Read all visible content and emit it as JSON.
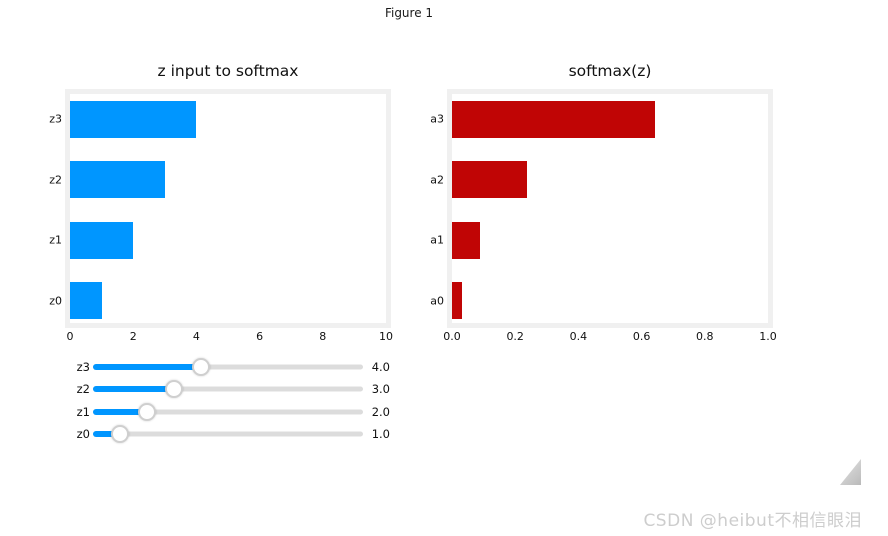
{
  "figure": {
    "title": "Figure 1"
  },
  "colors": {
    "bar_blue": "#0096ff",
    "bar_red": "#c00505",
    "plot_frame": "#f0f0f0",
    "slider_track": "#dcdcdc",
    "slider_fill": "#0096ff",
    "watermark": "#cdcdcd"
  },
  "chart_data": [
    {
      "type": "bar",
      "orientation": "horizontal",
      "title": "z input to softmax",
      "categories": [
        "z3",
        "z2",
        "z1",
        "z0"
      ],
      "values": [
        4,
        3,
        2,
        1
      ],
      "xlim": [
        0,
        10
      ],
      "xticks": [
        0,
        2,
        4,
        6,
        8,
        10
      ],
      "tick_labels": [
        "0",
        "2",
        "4",
        "6",
        "8",
        "10"
      ],
      "bar_color": "#0096ff",
      "grid": false,
      "legend": "none"
    },
    {
      "type": "bar",
      "orientation": "horizontal",
      "title": "softmax(z)",
      "categories": [
        "a3",
        "a2",
        "a1",
        "a0"
      ],
      "values": [
        0.6439,
        0.2369,
        0.0871,
        0.0321
      ],
      "xlim": [
        0,
        1
      ],
      "xticks": [
        0,
        0.2,
        0.4,
        0.6,
        0.8,
        1.0
      ],
      "tick_labels": [
        "0.0",
        "0.2",
        "0.4",
        "0.6",
        "0.8",
        "1.0"
      ],
      "bar_color": "#c00505",
      "grid": false,
      "legend": "none"
    }
  ],
  "sliders": {
    "items": [
      {
        "label": "z3",
        "value": 4,
        "value_label": "4.0",
        "min": 0,
        "max": 10
      },
      {
        "label": "z2",
        "value": 3,
        "value_label": "3.0",
        "min": 0,
        "max": 10
      },
      {
        "label": "z1",
        "value": 2,
        "value_label": "2.0",
        "min": 0,
        "max": 10
      },
      {
        "label": "z0",
        "value": 1,
        "value_label": "1.0",
        "min": 0,
        "max": 10
      }
    ]
  },
  "watermark": "CSDN @heibut不相信眼泪",
  "icons": {
    "resize_handle": "resize-corner-triangle"
  }
}
